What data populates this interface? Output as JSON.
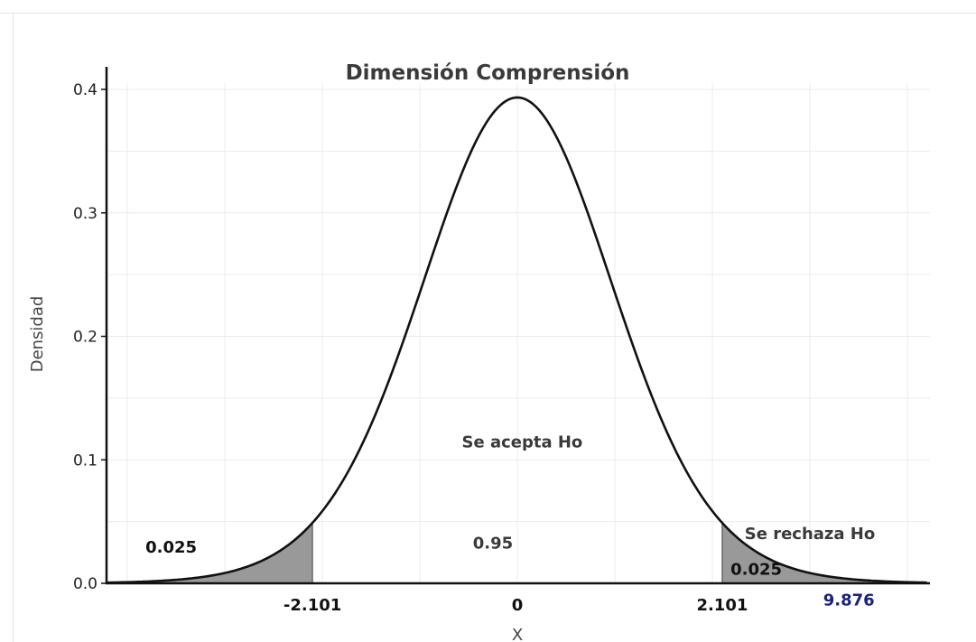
{
  "chart_data": {
    "type": "line",
    "title": "Dimensión Comprensión",
    "xlabel": "X",
    "ylabel": "Densidad",
    "distribution": "t",
    "degrees_of_freedom": 18,
    "xlim": [
      -4.2,
      4.2
    ],
    "ylim": [
      0,
      0.4
    ],
    "y_ticks": [
      {
        "value": 0.0,
        "label": "0.0"
      },
      {
        "value": 0.1,
        "label": "0.1"
      },
      {
        "value": 0.2,
        "label": "0.2"
      },
      {
        "value": 0.3,
        "label": "0.3"
      },
      {
        "value": 0.4,
        "label": "0.4"
      }
    ],
    "x_ticks": [
      {
        "value": -2.101,
        "label": "-2.101"
      },
      {
        "value": 0,
        "label": "0"
      },
      {
        "value": 2.101,
        "label": "2.101"
      }
    ],
    "critical_values": [
      -2.101,
      2.101
    ],
    "shaded_regions": [
      {
        "from": -4.2,
        "to": -2.101,
        "color": "#999999"
      },
      {
        "from": 2.101,
        "to": 4.2,
        "color": "#999999"
      }
    ],
    "grid": true,
    "annotations": [
      {
        "text": "Se acepta Ho",
        "x": 0.05,
        "y": 0.11,
        "color": "#3a3a3a"
      },
      {
        "text": "0.95",
        "x": -0.25,
        "y": 0.028,
        "color": "#3a3a3a"
      },
      {
        "text": "Se rechaza Ho",
        "x": 3.0,
        "y": 0.036,
        "color": "#3a3a3a"
      },
      {
        "text": "0.025",
        "x": -3.55,
        "y": 0.025,
        "color": "#111111"
      },
      {
        "text": "0.025",
        "x": 2.45,
        "y": 0.007,
        "color": "#111111"
      },
      {
        "text": "9.876",
        "x": 3.4,
        "y": -0.018,
        "color": "#1a237e"
      }
    ]
  }
}
